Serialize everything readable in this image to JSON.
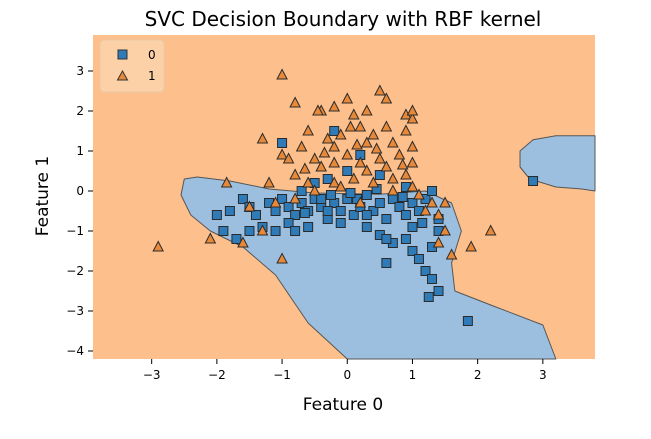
{
  "chart_data": {
    "type": "scatter",
    "title": "SVC Decision Boundary with RBF kernel",
    "xlabel": "Feature 0",
    "ylabel": "Feature 1",
    "xlim": [
      -3.9,
      3.8
    ],
    "ylim": [
      -4.2,
      3.9
    ],
    "x_ticks": [
      -3,
      -2,
      -1,
      0,
      1,
      2,
      3
    ],
    "y_ticks": [
      -4,
      -3,
      -2,
      -1,
      0,
      1,
      2,
      3
    ],
    "grid": false,
    "legend_placement": "top-left",
    "region_colors": {
      "0": "#9dbfdf",
      "1": "#fdc08c"
    },
    "decision_region_class0": [
      [
        [
          -2.5,
          0.3
        ],
        [
          -2.3,
          0.35
        ],
        [
          -1.8,
          0.25
        ],
        [
          -1.2,
          0.05
        ],
        [
          -0.5,
          -0.05
        ],
        [
          0.5,
          -0.08
        ],
        [
          1.2,
          0.0
        ],
        [
          1.6,
          -0.3
        ],
        [
          1.75,
          -1.0
        ],
        [
          1.6,
          -1.8
        ],
        [
          1.65,
          -2.5
        ],
        [
          2.2,
          -2.85
        ],
        [
          3.0,
          -3.35
        ],
        [
          3.2,
          -4.2
        ],
        [
          0.0,
          -4.2
        ],
        [
          -0.6,
          -3.3
        ],
        [
          -1.1,
          -2.1
        ],
        [
          -1.6,
          -1.4
        ],
        [
          -2.1,
          -1.0
        ],
        [
          -2.4,
          -0.6
        ],
        [
          -2.55,
          -0.1
        ]
      ],
      [
        [
          2.65,
          1.0
        ],
        [
          2.85,
          1.28
        ],
        [
          3.2,
          1.38
        ],
        [
          3.8,
          1.38
        ],
        [
          3.8,
          0.0
        ],
        [
          3.6,
          0.05
        ],
        [
          3.2,
          0.1
        ],
        [
          2.8,
          0.3
        ],
        [
          2.65,
          0.6
        ]
      ]
    ],
    "series": [
      {
        "name": "0",
        "marker": "square",
        "color": "#2e7bb8",
        "points": [
          [
            -1.6,
            -0.2
          ],
          [
            -1.5,
            -0.4
          ],
          [
            -1.4,
            -0.6
          ],
          [
            -1.2,
            -0.3
          ],
          [
            -1.1,
            -0.5
          ],
          [
            -1.0,
            -0.2
          ],
          [
            -0.9,
            -0.4
          ],
          [
            -0.8,
            -0.6
          ],
          [
            -0.7,
            -0.3
          ],
          [
            -0.6,
            -0.5
          ],
          [
            -0.5,
            -0.2
          ],
          [
            -0.4,
            -0.4
          ],
          [
            -0.3,
            -0.7
          ],
          [
            -0.2,
            -0.3
          ],
          [
            -0.1,
            -0.5
          ],
          [
            0.0,
            -0.2
          ],
          [
            0.1,
            -0.6
          ],
          [
            0.2,
            -0.4
          ],
          [
            0.3,
            -0.1
          ],
          [
            0.4,
            -0.5
          ],
          [
            0.5,
            -0.3
          ],
          [
            0.6,
            -0.7
          ],
          [
            0.7,
            -0.2
          ],
          [
            0.8,
            -0.4
          ],
          [
            0.9,
            -0.6
          ],
          [
            1.0,
            -0.3
          ],
          [
            1.1,
            -0.5
          ],
          [
            1.2,
            -0.2
          ],
          [
            0.3,
            -0.9
          ],
          [
            0.5,
            -1.1
          ],
          [
            0.7,
            -1.3
          ],
          [
            0.9,
            -1.2
          ],
          [
            1.0,
            -1.5
          ],
          [
            1.1,
            -1.7
          ],
          [
            1.2,
            -2.0
          ],
          [
            1.3,
            -2.2
          ],
          [
            1.4,
            -2.5
          ],
          [
            1.25,
            -2.65
          ],
          [
            1.85,
            -3.25
          ],
          [
            2.85,
            0.25
          ],
          [
            0.6,
            -1.8
          ],
          [
            -0.2,
            1.5
          ],
          [
            -0.5,
            0.2
          ],
          [
            -0.7,
            0.0
          ],
          [
            0.2,
            0.9
          ],
          [
            0.5,
            0.4
          ],
          [
            0.0,
            0.5
          ],
          [
            -0.3,
            0.3
          ],
          [
            -1.0,
            1.2
          ],
          [
            -1.7,
            -1.2
          ],
          [
            -1.9,
            -1.0
          ],
          [
            -2.0,
            -0.6
          ],
          [
            -1.8,
            -0.5
          ],
          [
            -1.3,
            -0.9
          ],
          [
            -0.9,
            -0.8
          ],
          [
            -0.6,
            -0.9
          ],
          [
            -0.4,
            -0.2
          ],
          [
            0.9,
            0.1
          ],
          [
            1.3,
            0.0
          ],
          [
            1.0,
            -0.9
          ],
          [
            1.3,
            -1.4
          ],
          [
            1.4,
            -1.0
          ],
          [
            0.3,
            -0.6
          ],
          [
            -0.1,
            -0.8
          ],
          [
            0.6,
            -1.2
          ],
          [
            -1.5,
            -1.0
          ],
          [
            -1.1,
            -1.0
          ],
          [
            -0.8,
            -1.0
          ],
          [
            -0.3,
            -0.5
          ],
          [
            0.45,
            0.05
          ],
          [
            0.15,
            -0.2
          ],
          [
            -0.25,
            -0.1
          ],
          [
            -0.65,
            -0.55
          ],
          [
            0.85,
            -0.15
          ],
          [
            1.15,
            -0.8
          ],
          [
            1.4,
            -0.7
          ],
          [
            0.05,
            -0.05
          ]
        ]
      },
      {
        "name": "1",
        "marker": "triangle",
        "color": "#e8893a",
        "points": [
          [
            -1.0,
            2.9
          ],
          [
            -0.8,
            2.2
          ],
          [
            -0.4,
            2.0
          ],
          [
            -0.2,
            2.1
          ],
          [
            0.0,
            2.3
          ],
          [
            0.1,
            1.9
          ],
          [
            0.3,
            2.0
          ],
          [
            0.5,
            2.5
          ],
          [
            0.6,
            2.3
          ],
          [
            0.9,
            1.9
          ],
          [
            1.0,
            1.8
          ],
          [
            -0.6,
            1.5
          ],
          [
            -0.3,
            1.3
          ],
          [
            -0.1,
            1.4
          ],
          [
            0.2,
            1.6
          ],
          [
            0.4,
            1.4
          ],
          [
            0.7,
            1.2
          ],
          [
            0.9,
            1.5
          ],
          [
            1.0,
            1.1
          ],
          [
            -1.3,
            1.3
          ],
          [
            -1.0,
            0.9
          ],
          [
            -0.9,
            0.8
          ],
          [
            -0.7,
            1.1
          ],
          [
            -0.5,
            0.8
          ],
          [
            -0.4,
            0.6
          ],
          [
            -0.2,
            0.7
          ],
          [
            0.0,
            0.9
          ],
          [
            0.2,
            0.7
          ],
          [
            0.3,
            0.5
          ],
          [
            0.5,
            0.8
          ],
          [
            0.6,
            0.6
          ],
          [
            0.8,
            0.9
          ],
          [
            0.9,
            0.4
          ],
          [
            1.0,
            0.7
          ],
          [
            -0.8,
            0.4
          ],
          [
            -0.6,
            0.2
          ],
          [
            -0.2,
            0.2
          ],
          [
            0.1,
            0.3
          ],
          [
            0.4,
            0.2
          ],
          [
            0.7,
            0.3
          ],
          [
            1.0,
            0.1
          ],
          [
            1.1,
            -0.1
          ],
          [
            1.3,
            -0.3
          ],
          [
            1.4,
            -0.6
          ],
          [
            1.5,
            -1.0
          ],
          [
            1.4,
            -1.3
          ],
          [
            1.6,
            -1.6
          ],
          [
            1.9,
            -1.4
          ],
          [
            2.2,
            -1.0
          ],
          [
            1.5,
            -0.3
          ],
          [
            -2.9,
            -1.4
          ],
          [
            -2.1,
            -1.2
          ],
          [
            -1.85,
            0.2
          ],
          [
            -1.3,
            -1.0
          ],
          [
            -1.0,
            -1.7
          ],
          [
            -1.6,
            -1.3
          ],
          [
            -1.2,
            0.2
          ],
          [
            -1.5,
            -0.4
          ],
          [
            -0.2,
            1.1
          ],
          [
            0.6,
            1.6
          ],
          [
            1.0,
            2.0
          ],
          [
            0.3,
            1.2
          ],
          [
            -0.5,
            0.0
          ],
          [
            0.2,
            -0.3
          ],
          [
            -0.1,
            0.1
          ],
          [
            0.7,
            0.0
          ],
          [
            -0.8,
            -0.2
          ],
          [
            -1.1,
            -0.3
          ],
          [
            0.05,
            1.6
          ],
          [
            -0.35,
            0.95
          ],
          [
            0.45,
            1.05
          ],
          [
            0.85,
            0.65
          ],
          [
            -0.65,
            0.55
          ],
          [
            0.15,
            1.15
          ],
          [
            1.2,
            -0.5
          ],
          [
            -0.45,
            2.0
          ]
        ]
      }
    ]
  }
}
